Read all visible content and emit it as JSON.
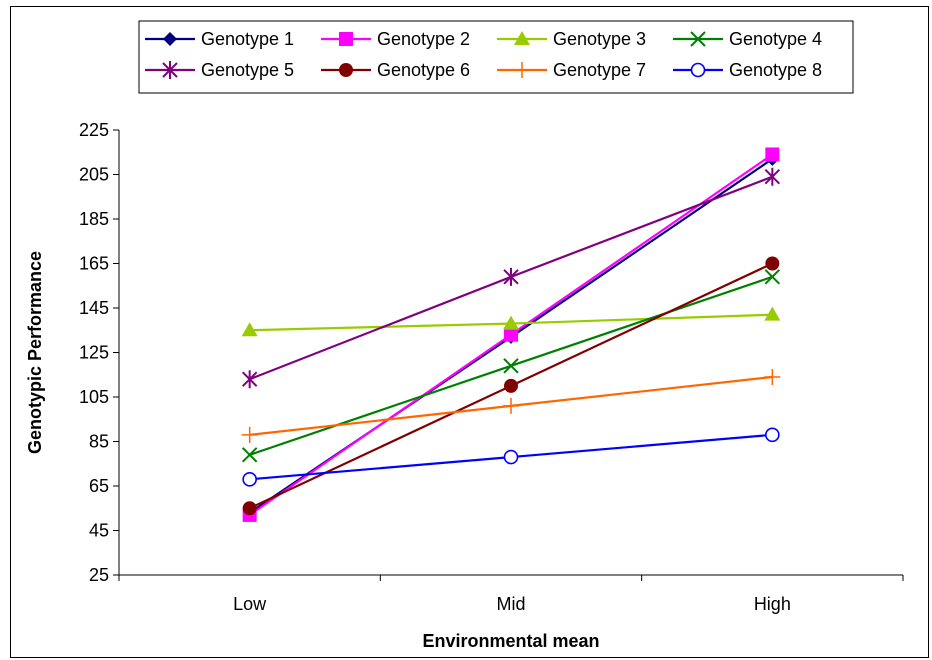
{
  "chart_data": {
    "type": "line",
    "categories": [
      "Low",
      "Mid",
      "High"
    ],
    "xlabel": "Environmental mean",
    "ylabel": "Genotypic Performance",
    "ylim": [
      25,
      225
    ],
    "yticks": [
      25,
      45,
      65,
      85,
      105,
      125,
      145,
      165,
      185,
      205,
      225
    ],
    "legend_placement": "top",
    "series": [
      {
        "name": "Genotype 1",
        "values": [
          53,
          132,
          212
        ],
        "color": "#000080",
        "marker": "diamond"
      },
      {
        "name": "Genotype 2",
        "values": [
          52,
          133,
          214
        ],
        "color": "#ff00ff",
        "marker": "square"
      },
      {
        "name": "Genotype 3",
        "values": [
          135,
          138,
          142
        ],
        "color": "#99cc00",
        "marker": "triangle"
      },
      {
        "name": "Genotype 4",
        "values": [
          79,
          119,
          159
        ],
        "color": "#008000",
        "marker": "x"
      },
      {
        "name": "Genotype 5",
        "values": [
          113,
          159,
          204
        ],
        "color": "#800080",
        "marker": "star"
      },
      {
        "name": "Genotype 6",
        "values": [
          55,
          110,
          165
        ],
        "color": "#800000",
        "marker": "circle-filled"
      },
      {
        "name": "Genotype 7",
        "values": [
          88,
          101,
          114
        ],
        "color": "#ff6600",
        "marker": "plus"
      },
      {
        "name": "Genotype 8",
        "values": [
          68,
          78,
          88
        ],
        "color": "#0000ff",
        "marker": "circle-open"
      }
    ]
  }
}
